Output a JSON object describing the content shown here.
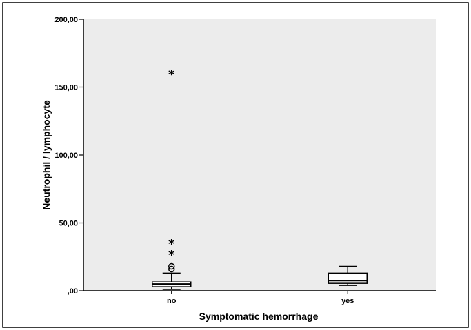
{
  "chart_data": {
    "type": "boxplot",
    "xlabel": "Symptomatic hemorrhage",
    "ylabel": "Neutrophil / lymphocyte",
    "ylim": [
      0,
      200
    ],
    "yticks": [
      0,
      50,
      100,
      150,
      200
    ],
    "ytick_labels": [
      ",00",
      "50,00",
      "100,00",
      "150,00",
      "200,00"
    ],
    "categories": [
      "no",
      "yes"
    ],
    "boxes": [
      {
        "category": "no",
        "whisker_low": 1,
        "q1": 3,
        "median": 5,
        "q3": 6.5,
        "whisker_high": 13,
        "outliers": [
          16,
          18
        ],
        "extremes": [
          27,
          35,
          160
        ]
      },
      {
        "category": "yes",
        "whisker_low": 4,
        "q1": 5.5,
        "median": 7.5,
        "q3": 13,
        "whisker_high": 18,
        "outliers": [],
        "extremes": []
      }
    ],
    "grid": false,
    "legend": "none",
    "colors": {
      "plot_background": "#ececec",
      "box_fill": "#ffffff",
      "line": "#000000",
      "page": "#ffffff"
    }
  }
}
